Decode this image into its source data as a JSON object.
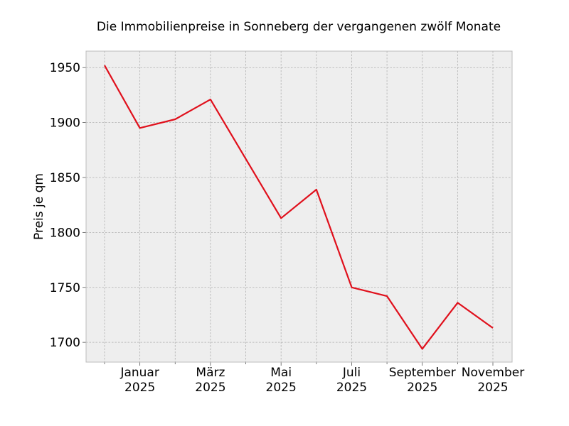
{
  "chart_data": {
    "type": "line",
    "title": "Die Immobilienpreise in Sonneberg der vergangenen zwölf Monate",
    "xlabel": "",
    "ylabel": "Preis je qm",
    "x": [
      "2024-12",
      "2025-01",
      "2025-02",
      "2025-03",
      "2025-04",
      "2025-05",
      "2025-06",
      "2025-07",
      "2025-08",
      "2025-09",
      "2025-10",
      "2025-11"
    ],
    "x_tick_labels": [
      {
        "x": "2025-01",
        "lines": [
          "Januar",
          "2025"
        ]
      },
      {
        "x": "2025-03",
        "lines": [
          "März",
          "2025"
        ]
      },
      {
        "x": "2025-05",
        "lines": [
          "Mai",
          "2025"
        ]
      },
      {
        "x": "2025-07",
        "lines": [
          "Juli",
          "2025"
        ]
      },
      {
        "x": "2025-09",
        "lines": [
          "September",
          "2025"
        ]
      },
      {
        "x": "2025-11",
        "lines": [
          "November",
          "2025"
        ]
      }
    ],
    "series": [
      {
        "values": [
          1952,
          1895,
          1903,
          1921,
          1867,
          1813,
          1839,
          1750,
          1742,
          1694,
          1736,
          1713
        ],
        "color": "#e0101c"
      }
    ],
    "yticks": [
      1700,
      1750,
      1800,
      1850,
      1900,
      1950
    ],
    "ylim": [
      1682,
      1965
    ],
    "grid": true,
    "background": "#eeeeee"
  }
}
